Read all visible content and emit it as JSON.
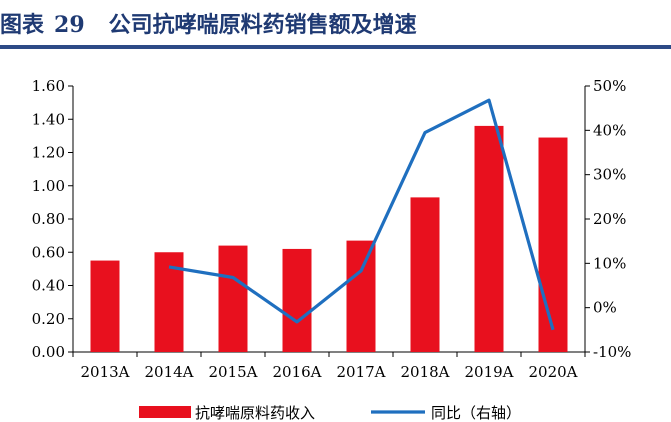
{
  "figure": {
    "label": "图表",
    "number": "29",
    "title": "公司抗哮喘原料药销售额及增速"
  },
  "chart_data": {
    "type": "bar",
    "categories": [
      "2013A",
      "2014A",
      "2015A",
      "2016A",
      "2017A",
      "2018A",
      "2019A",
      "2020A"
    ],
    "series": [
      {
        "name": "抗哮喘原料药收入",
        "type": "bar",
        "axis": "left",
        "values": [
          0.55,
          0.6,
          0.64,
          0.62,
          0.67,
          0.93,
          1.36,
          1.29
        ],
        "color": "#e8101e"
      },
      {
        "name": "同比（右轴）",
        "type": "line",
        "axis": "right",
        "values": [
          null,
          9.2,
          6.8,
          -3.2,
          8.3,
          39.5,
          46.8,
          -5.0
        ],
        "color": "#1f6fbf"
      }
    ],
    "ylim_left": [
      0,
      1.6
    ],
    "yticks_left": [
      "0.00",
      "0.20",
      "0.40",
      "0.60",
      "0.80",
      "1.00",
      "1.20",
      "1.40",
      "1.60"
    ],
    "ylim_right": [
      -10,
      50
    ],
    "yticks_right": [
      "-10%",
      "0%",
      "10%",
      "20%",
      "30%",
      "40%",
      "50%"
    ],
    "legend_placement": "bottom",
    "grid": false
  }
}
